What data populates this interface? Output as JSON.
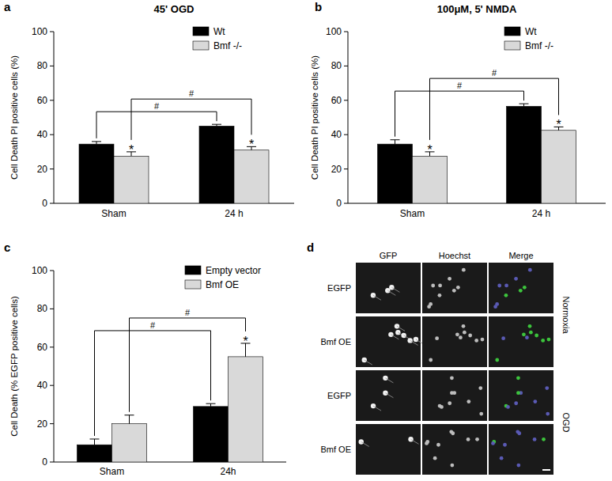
{
  "chart_data": [
    {
      "type": "bar",
      "panel_label": "a",
      "title": "45' OGD",
      "y_label": "Cell Death PI positive cells (%)",
      "categories": [
        "Sham",
        "24 h"
      ],
      "series": [
        {
          "name": "Wt",
          "color": "#000000",
          "values": [
            34.5,
            45
          ],
          "errors": [
            1.5,
            1
          ],
          "stars": [
            null,
            null
          ],
          "comparison": "#"
        },
        {
          "name": "Bmf -/-",
          "color": "#d9d9d9",
          "values": [
            27.5,
            31
          ],
          "errors": [
            2.5,
            2
          ],
          "stars": [
            "*",
            "*"
          ],
          "comparison": "#"
        }
      ],
      "ylim": [
        0,
        100
      ],
      "yticks": [
        0,
        20,
        40,
        60,
        80,
        100
      ],
      "legend": "upper right"
    },
    {
      "type": "bar",
      "panel_label": "b",
      "title": "100μM, 5' NMDA",
      "y_label": "Cell Death PI positive cells (%)",
      "categories": [
        "Sham",
        "24 h"
      ],
      "series": [
        {
          "name": "Wt",
          "color": "#000000",
          "values": [
            34.5,
            56.5
          ],
          "errors": [
            2.5,
            1.5
          ],
          "stars": [
            null,
            null
          ],
          "comparison": "#"
        },
        {
          "name": "Bmf -/-",
          "color": "#d9d9d9",
          "values": [
            27.5,
            42.5
          ],
          "errors": [
            2.5,
            2
          ],
          "stars": [
            "*",
            "*"
          ],
          "comparison": "#"
        }
      ],
      "ylim": [
        0,
        100
      ],
      "yticks": [
        0,
        20,
        40,
        60,
        80,
        100
      ],
      "legend": "upper right"
    },
    {
      "type": "bar",
      "panel_label": "c",
      "y_label": "Cell Death (% EGFP positive cells)",
      "categories": [
        "Sham",
        "24h"
      ],
      "series": [
        {
          "name": "Empty vector",
          "color": "#000000",
          "values": [
            9,
            29
          ],
          "errors": [
            3,
            1.5
          ],
          "stars": [
            null,
            null
          ],
          "comparison": "#"
        },
        {
          "name": "Bmf OE",
          "color": "#d9d9d9",
          "values": [
            20,
            55
          ],
          "errors": [
            4.5,
            7
          ],
          "stars": [
            null,
            "*"
          ],
          "comparison": "#"
        }
      ],
      "ylim": [
        0,
        100
      ],
      "yticks": [
        0,
        20,
        40,
        60,
        80,
        100
      ],
      "legend": "upper right"
    }
  ],
  "image_panel": {
    "panel_label": "d",
    "columns": [
      "GFP",
      "Hoechst",
      "Merge"
    ],
    "rows": [
      "EGFP",
      "Bmf OE",
      "EGFP",
      "Bmf OE"
    ],
    "conditions": [
      "Normoxia",
      "OGD"
    ]
  }
}
